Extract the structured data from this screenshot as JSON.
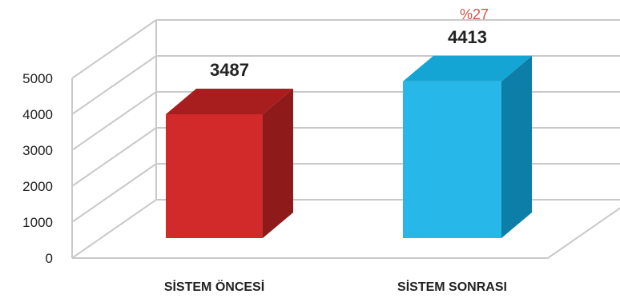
{
  "chart_data": {
    "type": "bar",
    "categories": [
      "SİSTEM ÖNCESİ",
      "SİSTEM SONRASI"
    ],
    "values": [
      3487,
      4413
    ],
    "data_labels": [
      "3487",
      "4413"
    ],
    "annotation": "%27",
    "title": "",
    "xlabel": "",
    "ylabel": "",
    "ylim": [
      0,
      5000
    ],
    "y_ticks": [
      "0",
      "1000",
      "2000",
      "3000",
      "4000",
      "5000"
    ],
    "grid": true,
    "legend": "none",
    "colors": {
      "bar_1": "#d22a2a",
      "bar_2": "#27b7e8",
      "annotation": "#d0563f",
      "grid": "#c9c9c9",
      "text": "#222222"
    }
  }
}
